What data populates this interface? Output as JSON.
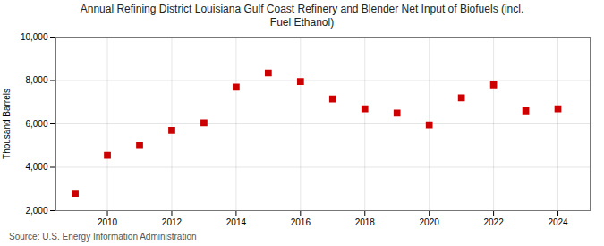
{
  "chart_data": {
    "type": "scatter",
    "title": "Annual Refining District Louisiana Gulf Coast Refinery and Blender Net Input of Biofuels (incl.\nFuel Ethanol)",
    "ylabel": "Thousand Barrels",
    "source": "Source: U.S. Energy Information Administration",
    "x": [
      2009,
      2010,
      2011,
      2012,
      2013,
      2014,
      2015,
      2016,
      2017,
      2018,
      2019,
      2020,
      2021,
      2022,
      2023,
      2024
    ],
    "values": [
      2800,
      4550,
      5000,
      5700,
      6050,
      7700,
      8350,
      7950,
      7150,
      6700,
      6500,
      5950,
      7200,
      7800,
      6600,
      6700
    ],
    "color": "#cc0000",
    "marker": "square",
    "xlim": [
      2008.4,
      2025.0
    ],
    "xticks": [
      2010,
      2012,
      2014,
      2016,
      2018,
      2020,
      2022,
      2024
    ],
    "ylim": [
      2000,
      10000
    ],
    "yticks": [
      {
        "value": 2000,
        "label": "2,000"
      },
      {
        "value": 4000,
        "label": "4,000"
      },
      {
        "value": 6000,
        "label": "6,000"
      },
      {
        "value": 8000,
        "label": "8,000"
      },
      {
        "value": 10000,
        "label": "10,000"
      }
    ],
    "grid": true
  }
}
